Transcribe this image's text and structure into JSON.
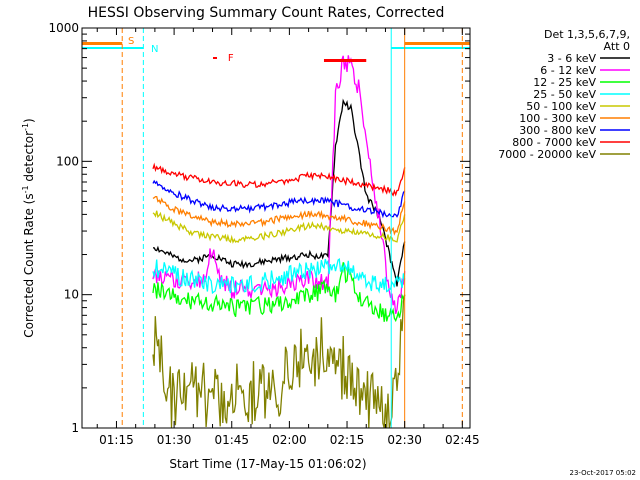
{
  "chart_data": {
    "type": "line",
    "title": "HESSI Observing Summary Count Rates, Corrected",
    "xlabel": "Start Time (17-May-15 01:06:02)",
    "ylabel_main": "Corrected Count Rate (s",
    "ylabel_sup1": "-1",
    "ylabel_mid": " detector",
    "ylabel_sup2": "-1",
    "ylabel_end": ")",
    "y_scale": "log",
    "ylim": [
      1,
      1000
    ],
    "xlim": [
      "01:06:02",
      "02:47:00"
    ],
    "x_ticks": [
      "01:15",
      "01:30",
      "01:45",
      "02:00",
      "02:15",
      "02:30",
      "02:45"
    ],
    "y_ticks": [
      "1",
      "10",
      "100",
      "1000"
    ],
    "legend_header": [
      "Det 1,3,5,6,7,9,",
      "Att 0"
    ],
    "legend_position": "right",
    "footer_date": "23-Oct-2017 05:02",
    "flags": [
      {
        "label": "S",
        "color": "#ff7f00"
      },
      {
        "label": "N",
        "color": "#00ffff"
      },
      {
        "label": "F",
        "color": "#ff0000"
      }
    ],
    "series": [
      {
        "name": "3 - 6 keV",
        "color": "#000000",
        "x": [
          "01:24:30",
          "01:30",
          "01:35",
          "01:40",
          "01:45",
          "01:50",
          "01:55",
          "02:00",
          "02:05",
          "02:10",
          "02:12",
          "02:14",
          "02:16",
          "02:18",
          "02:20",
          "02:22",
          "02:24",
          "02:26",
          "02:28",
          "02:30"
        ],
        "y": [
          23,
          19,
          18,
          20,
          17,
          17,
          18,
          19,
          20,
          19,
          130,
          280,
          250,
          120,
          55,
          45,
          35,
          20,
          12,
          25
        ]
      },
      {
        "name": "6 - 12 keV",
        "color": "#ff00ff",
        "x": [
          "01:24:30",
          "01:30",
          "01:35",
          "01:38",
          "01:40",
          "01:42",
          "01:45",
          "01:50",
          "01:55",
          "02:00",
          "02:05",
          "02:10",
          "02:12",
          "02:14",
          "02:16",
          "02:18",
          "02:20",
          "02:22",
          "02:24",
          "02:26",
          "02:28",
          "02:30"
        ],
        "y": [
          14,
          13,
          12,
          14,
          22,
          13,
          11,
          11,
          11,
          12,
          13,
          12,
          300,
          560,
          520,
          350,
          160,
          60,
          30,
          10,
          8,
          15
        ]
      },
      {
        "name": "12 - 25 keV",
        "color": "#00ff00",
        "x": [
          "01:24:30",
          "01:30",
          "01:35",
          "01:40",
          "01:45",
          "01:50",
          "01:55",
          "02:00",
          "02:05",
          "02:10",
          "02:12",
          "02:14",
          "02:16",
          "02:18",
          "02:20",
          "02:22",
          "02:24",
          "02:26",
          "02:28",
          "02:30"
        ],
        "y": [
          11,
          10,
          9,
          8.5,
          8,
          8,
          8.5,
          9,
          10,
          11,
          10,
          15,
          13,
          10,
          9,
          8,
          7.5,
          7,
          6.5,
          10
        ]
      },
      {
        "name": "25 - 50 keV",
        "color": "#00ffff",
        "x": [
          "01:24:30",
          "01:30",
          "01:35",
          "01:40",
          "01:45",
          "01:50",
          "01:55",
          "02:00",
          "02:05",
          "02:10",
          "02:12",
          "02:14",
          "02:16",
          "02:18",
          "02:20",
          "02:22",
          "02:24",
          "02:26",
          "02:28",
          "02:30"
        ],
        "y": [
          16,
          14,
          13,
          12,
          12,
          12,
          13,
          14,
          15,
          16,
          16,
          17,
          15,
          14,
          13,
          12,
          12,
          12,
          12,
          13
        ]
      },
      {
        "name": "50 - 100 keV",
        "color": "#c8c800",
        "x": [
          "01:24:30",
          "01:30",
          "01:35",
          "01:40",
          "01:45",
          "01:50",
          "01:55",
          "02:00",
          "02:05",
          "02:10",
          "02:14",
          "02:18",
          "02:22",
          "02:26",
          "02:28",
          "02:30"
        ],
        "y": [
          42,
          34,
          29,
          27,
          26,
          26,
          28,
          30,
          33,
          32,
          30,
          29,
          28,
          27,
          26,
          40
        ]
      },
      {
        "name": "100 - 300 keV",
        "color": "#ff7f00",
        "x": [
          "01:24:30",
          "01:30",
          "01:35",
          "01:40",
          "01:45",
          "01:50",
          "01:55",
          "02:00",
          "02:05",
          "02:10",
          "02:14",
          "02:18",
          "02:22",
          "02:26",
          "02:28",
          "02:30"
        ],
        "y": [
          54,
          44,
          38,
          35,
          34,
          34,
          36,
          38,
          40,
          39,
          37,
          35,
          33,
          31,
          30,
          50
        ]
      },
      {
        "name": "300 - 800 keV",
        "color": "#0000ff",
        "x": [
          "01:24:30",
          "01:30",
          "01:35",
          "01:40",
          "01:45",
          "01:50",
          "01:55",
          "02:00",
          "02:05",
          "02:10",
          "02:14",
          "02:18",
          "02:22",
          "02:26",
          "02:28",
          "02:30"
        ],
        "y": [
          70,
          58,
          50,
          45,
          44,
          44,
          46,
          49,
          51,
          50,
          47,
          44,
          42,
          40,
          38,
          60
        ]
      },
      {
        "name": "800 - 7000 keV",
        "color": "#ff0000",
        "x": [
          "01:24:30",
          "01:30",
          "01:35",
          "01:40",
          "01:45",
          "01:50",
          "01:55",
          "02:00",
          "02:05",
          "02:10",
          "02:14",
          "02:18",
          "02:22",
          "02:26",
          "02:28",
          "02:30"
        ],
        "y": [
          90,
          80,
          75,
          70,
          68,
          67,
          68,
          72,
          78,
          76,
          72,
          68,
          64,
          60,
          58,
          90
        ]
      },
      {
        "name": "7000 - 20000 keV",
        "color": "#808000",
        "x": [
          "01:24:30",
          "01:26",
          "01:28",
          "01:30",
          "01:32",
          "01:35",
          "01:40",
          "01:45",
          "01:50",
          "01:55",
          "02:00",
          "02:02",
          "02:05",
          "02:08",
          "02:10",
          "02:14",
          "02:18",
          "02:22",
          "02:26",
          "02:28",
          "02:30"
        ],
        "y": [
          4.5,
          3.5,
          2.5,
          1.5,
          1.8,
          2,
          1.7,
          2,
          1.8,
          1.7,
          2.6,
          3.5,
          3,
          4,
          3.2,
          2.8,
          2,
          1.6,
          1.4,
          3,
          10
        ]
      }
    ]
  }
}
